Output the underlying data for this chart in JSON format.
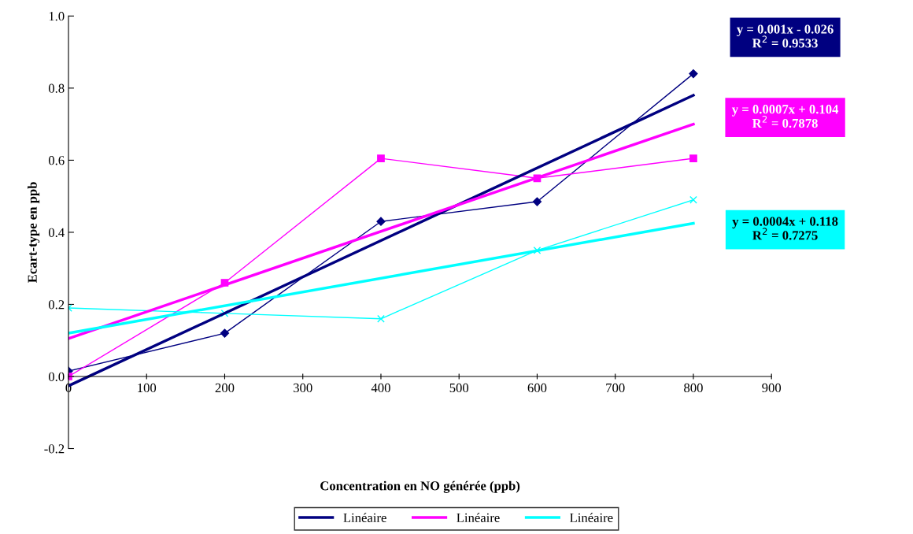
{
  "chart_data": {
    "type": "line",
    "xlabel": "Concentration en NO générée (ppb)",
    "ylabel": "Ecart-type en ppb",
    "xlim": [
      0,
      900
    ],
    "xticks": [
      0,
      100,
      200,
      300,
      400,
      500,
      600,
      700,
      800,
      900
    ],
    "ylim": [
      -0.2,
      1.0
    ],
    "yticks": [
      {
        "value": -0.2,
        "label": "-0.2"
      },
      {
        "value": 0,
        "label": "0.0"
      },
      {
        "value": 0.2,
        "label": "0.2"
      },
      {
        "value": 0.4,
        "label": "0.4"
      },
      {
        "value": 0.6,
        "label": "0.6"
      },
      {
        "value": 0.8,
        "label": "0.8"
      },
      {
        "value": 1.0,
        "label": "1.0"
      }
    ],
    "grid": false,
    "legend": "bottom",
    "series": [
      {
        "color": "#000080",
        "marker": "diamond",
        "x": [
          0,
          200,
          400,
          600,
          800
        ],
        "values": [
          0.015,
          0.12,
          0.43,
          0.485,
          0.84
        ]
      },
      {
        "color": "#ff00ff",
        "marker": "square",
        "x": [
          0,
          200,
          400,
          600,
          800
        ],
        "values": [
          0.0,
          0.26,
          0.605,
          0.55,
          0.605
        ]
      },
      {
        "color": "#00ffff",
        "marker": "cross",
        "x": [
          0,
          200,
          400,
          600,
          800
        ],
        "values": [
          0.19,
          0.175,
          0.16,
          0.35,
          0.49
        ]
      },
      {
        "name": "Linéaire",
        "color": "#000080",
        "marker": "none",
        "x": [
          0,
          800
        ],
        "values": [
          -0.026,
          0.78
        ]
      },
      {
        "name": "Linéaire",
        "color": "#ff00ff",
        "marker": "none",
        "x": [
          0,
          800
        ],
        "values": [
          0.105,
          0.7
        ]
      },
      {
        "name": "Linéaire",
        "color": "#00ffff",
        "marker": "none",
        "x": [
          0,
          800
        ],
        "values": [
          0.12,
          0.425
        ]
      }
    ],
    "annotations": [
      "y = 0.001x - 0.026\nR$^{2}$ = 0.9533",
      "y = 0.0007x + 0.104\nR$^{2}$ = 0.7878",
      "y = 0.0004x + 0.118\nR$^{2}$ = 0.7275"
    ]
  }
}
